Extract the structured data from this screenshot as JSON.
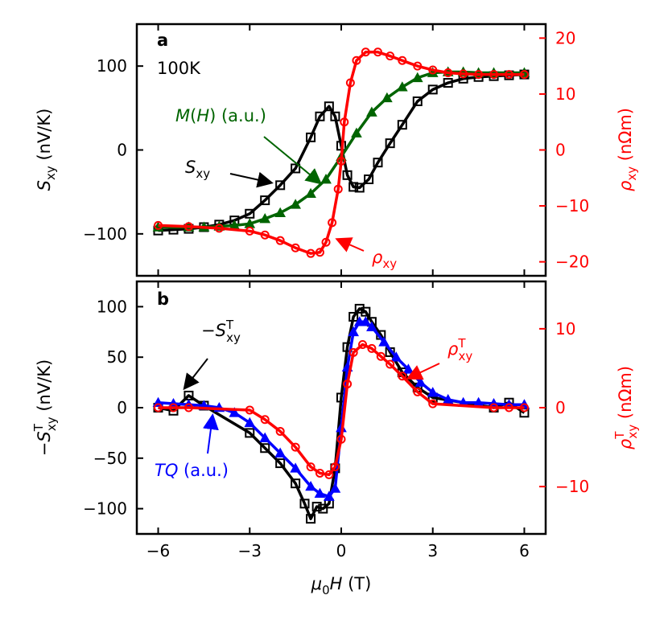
{
  "colors": {
    "black": "#000000",
    "red": "#ff0000",
    "green": "#006400",
    "blue": "#0000ff"
  },
  "chart_data": [
    {
      "type": "line",
      "panel_label": "a",
      "temperature_label": "100K",
      "xlabel": "μ0H (T)",
      "xlim": [
        -6.7,
        6.7
      ],
      "x_ticks": [
        -6,
        -3,
        0,
        3,
        6
      ],
      "x_tick_labels": [
        "−6",
        "−3",
        "0",
        "3",
        "6"
      ],
      "left_axis": {
        "label": "Sxy (nV/K)",
        "ylim": [
          -150,
          150
        ],
        "ticks": [
          -100,
          0,
          100
        ],
        "tick_labels": [
          "−100",
          "0",
          "100"
        ]
      },
      "right_axis": {
        "label": "ρxy (nΩm)",
        "ylim": [
          -22.5,
          22.5
        ],
        "ticks": [
          -20,
          -10,
          0,
          10,
          20
        ],
        "tick_labels": [
          "−20",
          "−10",
          "0",
          "10",
          "20"
        ]
      },
      "annotations": [
        "M(H) (a.u.)",
        "Sxy",
        "ρxy"
      ],
      "series": [
        {
          "name": "Sxy",
          "axis": "left",
          "color": "#000000",
          "marker": "square",
          "x": [
            -6,
            -5.5,
            -5,
            -4.5,
            -4,
            -3.5,
            -3,
            -2.5,
            -2,
            -1.5,
            -1,
            -0.7,
            -0.4,
            -0.2,
            0,
            0.2,
            0.4,
            0.6,
            0.9,
            1.2,
            1.6,
            2,
            2.5,
            3,
            3.5,
            4,
            4.5,
            5,
            5.5,
            6
          ],
          "y": [
            -96,
            -95,
            -94,
            -92,
            -89,
            -84,
            -76,
            -60,
            -42,
            -22,
            15,
            40,
            52,
            40,
            5,
            -30,
            -44,
            -45,
            -35,
            -15,
            8,
            30,
            58,
            72,
            80,
            85,
            87,
            88,
            89,
            90
          ]
        },
        {
          "name": "M(H)",
          "axis": "left",
          "color": "#006400",
          "marker": "triangle",
          "x": [
            -6,
            -5,
            -4.5,
            -4,
            -3.5,
            -3,
            -2.5,
            -2,
            -1.5,
            -1,
            -0.5,
            0,
            0.5,
            1,
            1.5,
            2,
            2.5,
            3,
            3.5,
            4,
            4.5,
            5,
            6
          ],
          "y": [
            -92,
            -92,
            -92,
            -91,
            -90,
            -88,
            -82,
            -75,
            -65,
            -52,
            -35,
            -8,
            20,
            45,
            62,
            75,
            86,
            92,
            93,
            93,
            92,
            92,
            92
          ]
        },
        {
          "name": "ρxy",
          "axis": "right",
          "color": "#ff0000",
          "marker": "circle",
          "x": [
            -6,
            -5,
            -4,
            -3,
            -2.5,
            -2,
            -1.5,
            -1,
            -0.7,
            -0.5,
            -0.3,
            -0.1,
            0,
            0.1,
            0.3,
            0.5,
            0.8,
            1.2,
            1.6,
            2,
            2.5,
            3,
            3.5,
            4,
            4.5,
            5,
            5.5,
            6
          ],
          "y": [
            -13.5,
            -13.7,
            -14,
            -14.5,
            -15.2,
            -16.2,
            -17.5,
            -18.5,
            -18.3,
            -16.5,
            -13,
            -7,
            -2,
            5,
            12,
            16,
            17.5,
            17.5,
            16.8,
            16,
            15,
            14.3,
            13.8,
            13.6,
            13.5,
            13.5,
            13.5,
            13.5
          ]
        }
      ]
    },
    {
      "type": "line",
      "panel_label": "b",
      "xlabel": "μ0H (T)",
      "xlim": [
        -6.7,
        6.7
      ],
      "x_ticks": [
        -6,
        -3,
        0,
        3,
        6
      ],
      "x_tick_labels": [
        "−6",
        "−3",
        "0",
        "3",
        "6"
      ],
      "left_axis": {
        "label": "−SxyT (nV/K)",
        "ylim": [
          -125,
          125
        ],
        "ticks": [
          -100,
          -50,
          0,
          50,
          100
        ],
        "tick_labels": [
          "−100",
          "−50",
          "0",
          "50",
          "100"
        ]
      },
      "right_axis": {
        "label": "ρxyT (nΩm)",
        "ylim": [
          -16,
          16
        ],
        "ticks": [
          -10,
          0,
          10
        ],
        "tick_labels": [
          "−10",
          "0",
          "10"
        ]
      },
      "annotations": [
        "−SxyT",
        "TQ (a.u.)",
        "ρxyT"
      ],
      "series": [
        {
          "name": "−SxyT",
          "axis": "left",
          "color": "#000000",
          "marker": "square",
          "x": [
            -6,
            -5.5,
            -5,
            -4.5,
            -3,
            -2.5,
            -2,
            -1.5,
            -1.2,
            -1,
            -0.8,
            -0.6,
            -0.4,
            -0.2,
            0,
            0.2,
            0.4,
            0.6,
            0.8,
            1,
            1.3,
            1.6,
            2,
            2.5,
            3,
            5,
            5.5,
            6
          ],
          "y": [
            0,
            -3,
            12,
            2,
            -25,
            -40,
            -55,
            -75,
            -95,
            -110,
            -98,
            -100,
            -95,
            -60,
            10,
            60,
            90,
            98,
            95,
            85,
            72,
            55,
            35,
            20,
            10,
            0,
            5,
            -5
          ]
        },
        {
          "name": "TQ",
          "axis": "left",
          "color": "#0000ff",
          "marker": "triangle",
          "x": [
            -6,
            -5.5,
            -5,
            -4.5,
            -4,
            -3.5,
            -3,
            -2.5,
            -2,
            -1.5,
            -1,
            -0.7,
            -0.4,
            -0.2,
            0,
            0.2,
            0.4,
            0.6,
            0.8,
            1,
            1.4,
            1.8,
            2.2,
            2.6,
            3,
            3.5,
            4,
            4.5,
            5,
            5.5,
            6
          ],
          "y": [
            5,
            4,
            3,
            2,
            0,
            -5,
            -15,
            -30,
            -45,
            -60,
            -78,
            -85,
            -88,
            -80,
            -20,
            40,
            75,
            85,
            85,
            80,
            65,
            50,
            38,
            25,
            15,
            8,
            5,
            5,
            4,
            3,
            3
          ]
        },
        {
          "name": "ρxyT",
          "axis": "right",
          "color": "#ff0000",
          "marker": "circle",
          "x": [
            -6,
            -5.5,
            -5,
            -3,
            -2.5,
            -2,
            -1.5,
            -1,
            -0.7,
            -0.4,
            -0.2,
            0,
            0.2,
            0.4,
            0.7,
            1,
            1.3,
            1.6,
            2,
            2.5,
            3,
            5,
            5.5,
            6
          ],
          "y": [
            0,
            0,
            0,
            -0.3,
            -1.5,
            -3,
            -5,
            -7.5,
            -8.3,
            -8.5,
            -7.5,
            -4,
            3,
            7,
            8,
            7.5,
            6.5,
            5.5,
            4,
            2,
            0.5,
            0,
            0,
            0
          ]
        }
      ]
    }
  ]
}
